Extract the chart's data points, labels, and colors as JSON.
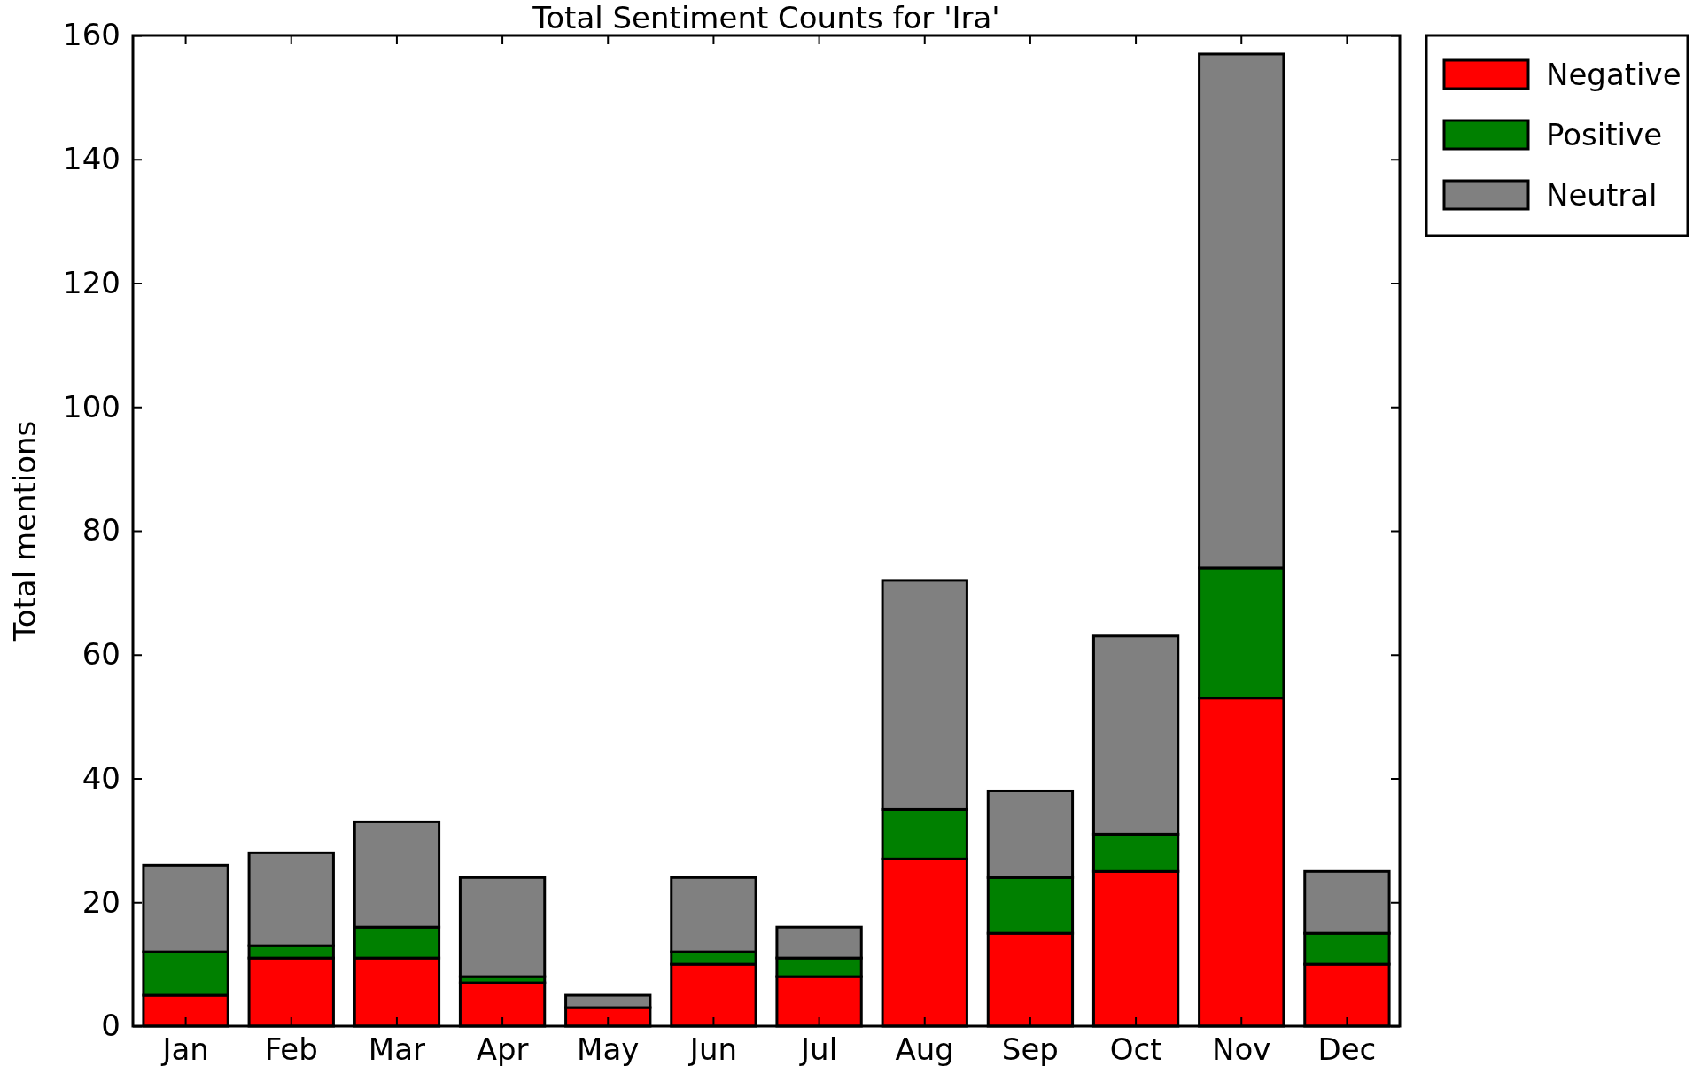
{
  "chart_data": {
    "type": "bar",
    "title": "Total Sentiment Counts for 'Ira'",
    "ylabel": "Total mentions",
    "categories": [
      "Jan",
      "Feb",
      "Mar",
      "Apr",
      "May",
      "Jun",
      "Jul",
      "Aug",
      "Sep",
      "Oct",
      "Nov",
      "Dec"
    ],
    "series": [
      {
        "name": "Negative",
        "color": "#ff0000",
        "values": [
          5,
          11,
          11,
          7,
          3,
          10,
          8,
          27,
          15,
          25,
          53,
          10
        ]
      },
      {
        "name": "Positive",
        "color": "#008000",
        "values": [
          7,
          2,
          5,
          1,
          0,
          2,
          3,
          8,
          9,
          6,
          21,
          5
        ]
      },
      {
        "name": "Neutral",
        "color": "#808080",
        "values": [
          14,
          15,
          17,
          16,
          2,
          12,
          5,
          37,
          14,
          32,
          83,
          10
        ]
      }
    ],
    "stacked": true,
    "ylim": [
      0,
      160
    ],
    "yticks": [
      0,
      20,
      40,
      60,
      80,
      100,
      120,
      140,
      160
    ],
    "legend": "top right"
  }
}
